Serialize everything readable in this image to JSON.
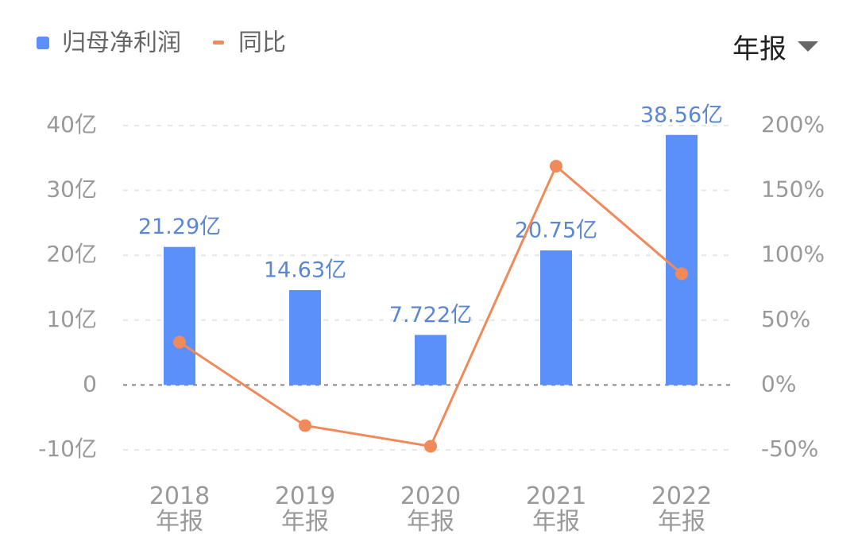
{
  "period_selector": "年报",
  "chart_data": {
    "type": "bar",
    "categories": [
      "2018\n年报",
      "2019\n年报",
      "2020\n年报",
      "2021\n年报",
      "2022\n年报"
    ],
    "series": [
      {
        "name": "归母净利润",
        "color": "#5b8ff9",
        "type": "bar",
        "values": [
          21.29,
          14.63,
          7.722,
          20.75,
          38.56
        ],
        "value_labels": [
          "21.29亿",
          "14.63亿",
          "7.722亿",
          "20.75亿",
          "38.56亿"
        ]
      },
      {
        "name": "同比",
        "color": "#f08a5a",
        "type": "line",
        "axis": "y2",
        "values": [
          33,
          -31.28,
          -47.22,
          168.71,
          85.83
        ]
      }
    ],
    "ylim": [
      -10,
      40
    ],
    "yticks": [
      {
        "value": -10,
        "label": "-10亿"
      },
      0,
      {
        "value": 10,
        "label": "10亿"
      },
      {
        "value": 20,
        "label": "20亿"
      },
      {
        "value": 30,
        "label": "30亿"
      },
      {
        "value": 40,
        "label": "40亿"
      }
    ],
    "y2lim": [
      -50,
      200
    ],
    "y2ticks": [
      {
        "value": -50,
        "label": "-50%"
      },
      {
        "value": 0,
        "label": "0%"
      },
      {
        "value": 50,
        "label": "50%"
      },
      {
        "value": 100,
        "label": "100%"
      },
      {
        "value": 150,
        "label": "150%"
      },
      {
        "value": 200,
        "label": "200%"
      }
    ],
    "grid": true,
    "legend": "top-left"
  }
}
